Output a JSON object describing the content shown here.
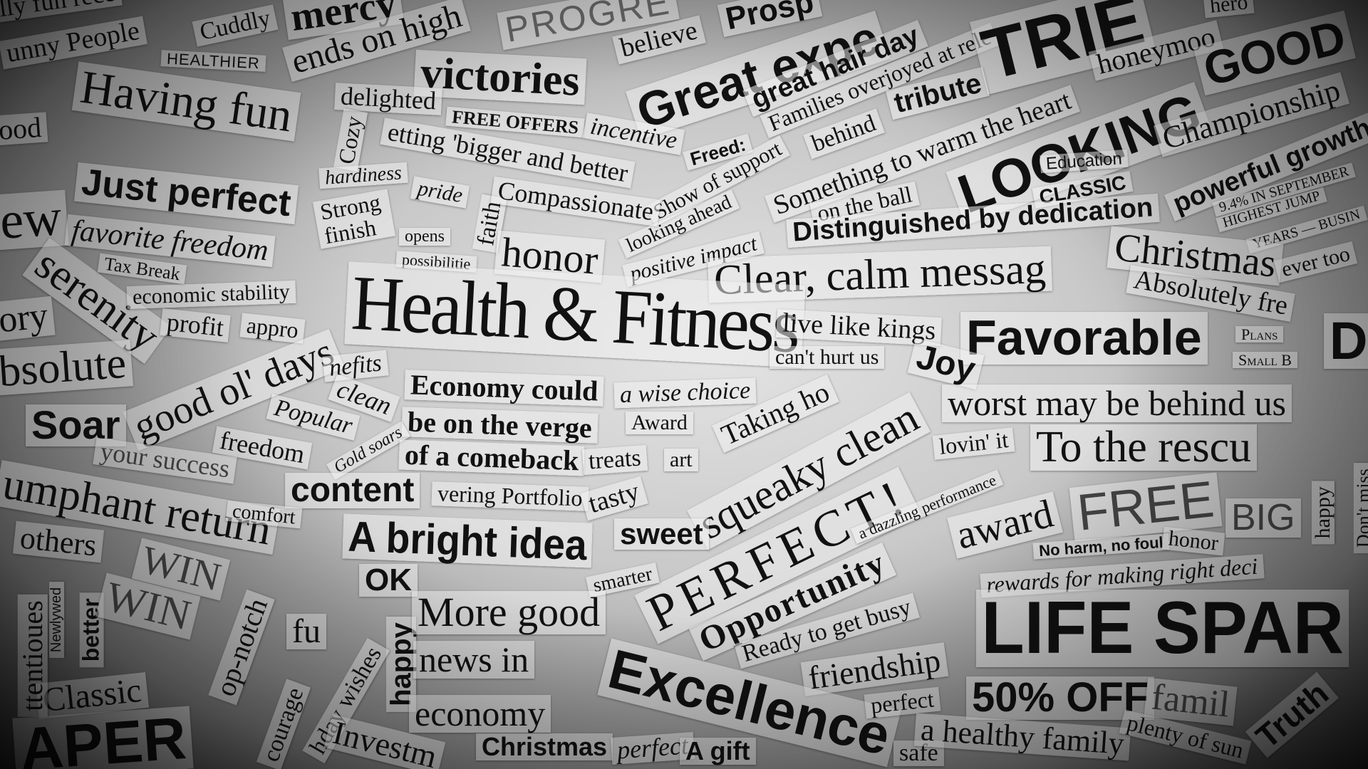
{
  "clippings": {
    "t001": "lly fun rece",
    "t002": "unny People",
    "t003": "Cuddly",
    "t004": "mercy",
    "t005": "HEALTHIER",
    "t006": "ends on high",
    "t007": "PROGRE",
    "t008": "believe",
    "t009": "Prosp",
    "t010": "Great expe",
    "t011": "great hair day",
    "t012": "Families overjoyed at rele",
    "t013": "TRIE",
    "t014": "hero",
    "t015": "honeymoo",
    "t016": "GOOD",
    "t017": "victories",
    "t018": "delighted",
    "t019": "Having fun",
    "t020": "ood",
    "t021": "Cozy",
    "t022": "FREE OFFERS",
    "t023": "incentive",
    "t024": "Freed:",
    "t025": "tribute",
    "t026": "Show of support",
    "t027": "behind",
    "t028": "Something to warm the heart",
    "t029": "LOOKING",
    "t030": "Education",
    "t031": "Championship",
    "t032": "powerful growth",
    "t033": "etting 'bigger and better",
    "t034": "hardiness",
    "t035": "Just perfect",
    "t036": "Strong finish",
    "t037": "pride",
    "t038": "faith",
    "t039": "Compassionate",
    "t040": "looking ahead",
    "t041": "on the ball",
    "t042": "CLASSIC",
    "t043": "Distinguished by dedication",
    "t044": "9.4% IN SEPTEMBER",
    "t045": "HIGHEST JUMP",
    "t046": "YEARS — BUSIN",
    "t047": "ew",
    "t048": "favorite freedom",
    "t049": "opens",
    "t050": "possibilitie",
    "t051": "honor",
    "t052": "positive impact",
    "t053": "Clear, calm messag",
    "t054": "Christmas",
    "t055": "ever too",
    "t056": "serenity",
    "t057": "Tax Break",
    "t058": "economic stability",
    "t059": "Absolutely fre",
    "t060": "Health & Fitness",
    "t061": "profit",
    "t062": "appro",
    "t063": "ory",
    "t064": "live like kings",
    "t065": "can't hurt us",
    "t066": "Favorable",
    "t067": "Plans",
    "t068": "Small B",
    "t069": "D",
    "t070": "bsolute",
    "t071": "good ol' days",
    "t072": "nefits",
    "t073": "clean",
    "t074": "Joy",
    "t075": "Economy could",
    "t076": "a wise choice",
    "t077": "Taking ho",
    "t078": "worst may be behind us",
    "t079": "Soar",
    "t080": "Popular",
    "t081": "be on the verge",
    "t082": "Award",
    "t083": "squeaky clean",
    "t084": "freedom",
    "t085": "Gold soars",
    "t086": "of a comeback",
    "t087": "treats",
    "t088": "art",
    "t089": "lovin' it",
    "t090": "To the rescu",
    "t091": "your success",
    "t092": "content",
    "t093": "vering Portfolio",
    "t094": "tasty",
    "t095": "PERFECT!",
    "t096": "a dazzling performance",
    "t097": "FREE",
    "t098": "BIG",
    "t099": "happy",
    "t100": "Don't miss",
    "t101": "umphant return",
    "t102": "comfort",
    "t103": "A bright idea",
    "t104": "sweet",
    "t105": "award",
    "t106": "No harm, no foul",
    "t107": "honor",
    "t108": "others",
    "t109": "WIN",
    "t110": "OK",
    "t111": "smarter",
    "t112": "Opportunity",
    "t113": "rewards for making right deci",
    "t114": "Newlywed",
    "t115": "better",
    "t116": "op-notch",
    "t117": "fu",
    "t118": "happy",
    "t119": "More good",
    "t120": "Ready to get busy",
    "t121": "LIFE SPAR",
    "t122": "news in",
    "t123": "friendship",
    "t124": "Classic",
    "t125": "courage",
    "t126": "hday wishes",
    "t127": "economy",
    "t128": "Excellence",
    "t129": "perfect",
    "t130": "50% OFF",
    "t131": "famil",
    "t132": "Truth",
    "t133": "APER",
    "t134": "Investm",
    "t135": "Christmas",
    "t136": "perfect",
    "t137": "A gift",
    "t138": "safe",
    "t139": "a healthy family",
    "t140": "plenty of sun",
    "t141": "WIN",
    "t142": "ttentioues"
  }
}
